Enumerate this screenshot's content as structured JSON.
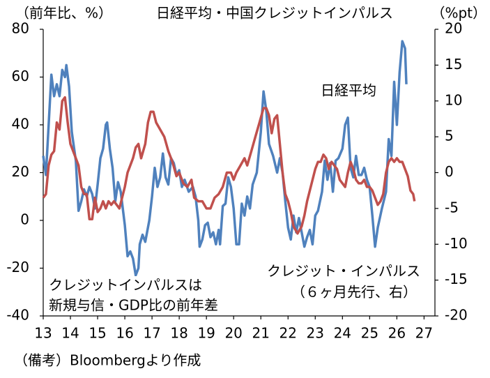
{
  "chart_data": {
    "type": "line",
    "title": "日経平均・中国クレジットインパルス",
    "ylabel": "（前年比、%）",
    "y2label": "（%pt）",
    "xlim": [
      13,
      27.4
    ],
    "xticks": [
      13,
      14,
      15,
      16,
      17,
      18,
      19,
      20,
      21,
      22,
      23,
      24,
      25,
      26,
      27
    ],
    "ylim": [
      -40,
      80
    ],
    "yticks": [
      -40,
      -20,
      0,
      20,
      40,
      60,
      80
    ],
    "y2lim": [
      -20,
      20
    ],
    "y2ticks": [
      -20,
      -15,
      -10,
      -5,
      0,
      5,
      10,
      15,
      20
    ],
    "series": [
      {
        "name": "日経平均",
        "color": "#4f81bd",
        "axis": "y",
        "x": [
          13.0,
          13.1,
          13.2,
          13.3,
          13.4,
          13.5,
          13.6,
          13.7,
          13.8,
          13.85,
          13.95,
          14.05,
          14.2,
          14.3,
          14.4,
          14.5,
          14.6,
          14.7,
          14.8,
          14.9,
          15.0,
          15.1,
          15.2,
          15.3,
          15.35,
          15.45,
          15.55,
          15.65,
          15.75,
          15.85,
          16.0,
          16.1,
          16.2,
          16.3,
          16.4,
          16.5,
          16.55,
          16.65,
          16.75,
          16.9,
          17.0,
          17.1,
          17.2,
          17.3,
          17.4,
          17.5,
          17.6,
          17.7,
          17.8,
          17.9,
          18.0,
          18.1,
          18.2,
          18.35,
          18.5,
          18.6,
          18.7,
          18.75,
          18.85,
          18.95,
          19.05,
          19.15,
          19.25,
          19.35,
          19.45,
          19.5,
          19.6,
          19.7,
          19.8,
          19.9,
          20.0,
          20.1,
          20.2,
          20.3,
          20.4,
          20.5,
          20.6,
          20.7,
          20.85,
          21.0,
          21.1,
          21.2,
          21.3,
          21.45,
          21.6,
          21.7,
          21.8,
          21.9,
          22.0,
          22.1,
          22.2,
          22.3,
          22.4,
          22.5,
          22.6,
          22.7,
          22.8,
          22.9,
          23.0,
          23.1,
          23.25,
          23.35,
          23.45,
          23.55,
          23.65,
          23.75,
          23.85,
          24.0,
          24.1,
          24.2,
          24.3,
          24.4,
          24.5,
          24.6,
          24.7,
          24.8,
          24.9,
          25.0,
          25.1,
          25.2,
          25.3,
          25.45,
          25.6,
          25.7,
          25.8,
          25.9,
          26.0,
          26.1,
          26.2,
          26.3,
          26.35
        ],
        "values": [
          27,
          19,
          40,
          61,
          52,
          57,
          52,
          63,
          60,
          65,
          56,
          37,
          25,
          4,
          8,
          13,
          10,
          14,
          11,
          5,
          15,
          26,
          30,
          40,
          41,
          30,
          22,
          8,
          16,
          12,
          -2,
          -15,
          -13,
          -16,
          -23,
          -20,
          -10,
          -6,
          -9,
          0,
          10,
          22,
          14,
          18,
          28,
          18,
          15,
          26,
          24,
          19,
          21,
          14,
          17,
          12,
          14,
          10,
          0,
          -11,
          -8,
          -2,
          -1,
          -7,
          -5,
          -10,
          -4,
          -10,
          6,
          7,
          18,
          14,
          5,
          -10,
          -10,
          7,
          2,
          10,
          5,
          15,
          20,
          37,
          54,
          46,
          32,
          27,
          20,
          26,
          20,
          8,
          -3,
          -8,
          2,
          -5,
          1,
          -5,
          -11,
          -7,
          -4,
          -10,
          2,
          4,
          12,
          25,
          17,
          24,
          12,
          25,
          26,
          30,
          40,
          43,
          22,
          18,
          27,
          19,
          19,
          22,
          17,
          14,
          2,
          -11,
          -3,
          5,
          12,
          34,
          27,
          58,
          40,
          62,
          75,
          72,
          57
        ]
      },
      {
        "name": "クレジット・インパルス",
        "color": "#c0504d",
        "axis": "y2",
        "x": [
          13.0,
          13.1,
          13.2,
          13.3,
          13.4,
          13.5,
          13.6,
          13.7,
          13.8,
          13.9,
          14.0,
          14.2,
          14.3,
          14.4,
          14.5,
          14.6,
          14.7,
          14.8,
          14.9,
          15.0,
          15.1,
          15.2,
          15.3,
          15.4,
          15.5,
          15.6,
          15.7,
          15.8,
          16.0,
          16.1,
          16.2,
          16.3,
          16.4,
          16.5,
          16.6,
          16.75,
          16.85,
          16.95,
          17.05,
          17.15,
          17.3,
          17.45,
          17.6,
          17.75,
          17.9,
          18.0,
          18.15,
          18.3,
          18.45,
          18.55,
          18.7,
          18.85,
          19.0,
          19.15,
          19.3,
          19.45,
          19.6,
          19.75,
          19.9,
          20.0,
          20.1,
          20.25,
          20.4,
          20.5,
          20.65,
          20.8,
          20.95,
          21.1,
          21.2,
          21.3,
          21.4,
          21.5,
          21.6,
          21.7,
          21.8,
          21.9,
          22.0,
          22.1,
          22.2,
          22.35,
          22.5,
          22.6,
          22.7,
          22.8,
          22.9,
          23.0,
          23.1,
          23.2,
          23.3,
          23.4,
          23.5,
          23.6,
          23.7,
          23.8,
          23.9,
          24.0,
          24.1,
          24.2,
          24.3,
          24.4,
          24.5,
          24.6,
          24.7,
          24.8,
          24.9,
          25.0,
          25.1,
          25.2,
          25.3,
          25.4,
          25.5,
          25.6,
          25.7,
          25.8,
          25.9,
          26.0,
          26.1,
          26.2,
          26.3,
          26.4,
          26.5,
          26.6,
          26.65
        ],
        "values": [
          -3.5,
          -3,
          1,
          2.5,
          3,
          7,
          6,
          10,
          10.5,
          7,
          4,
          2,
          1,
          -2,
          -3,
          -3,
          -6.5,
          -6.5,
          -3.5,
          -5.5,
          -5,
          -4,
          -5,
          -4,
          -4.5,
          -4,
          -4.5,
          -5,
          -2,
          0,
          1,
          2,
          3.5,
          4,
          2,
          4,
          7,
          8.5,
          8.5,
          7,
          6,
          5,
          3,
          1.5,
          -0.5,
          0,
          -1.5,
          -2,
          -1,
          -3.5,
          -4,
          -4,
          -5,
          -5,
          -3.5,
          -3,
          -2,
          0,
          0,
          -1,
          0,
          1,
          2,
          1,
          3,
          5,
          7,
          9,
          9,
          8,
          5.5,
          7.5,
          8,
          4,
          0,
          -3,
          -4,
          -5.5,
          -7.5,
          -8.5,
          -7.5,
          -6,
          -4,
          -2.5,
          -1,
          0.5,
          1.5,
          1.5,
          2.5,
          2,
          0.5,
          1.5,
          1,
          0.5,
          -1,
          -1.5,
          -2,
          0,
          1.5,
          0.5,
          -1,
          -1.5,
          -1.5,
          -1,
          -2,
          -2,
          -2.5,
          -3.5,
          -4.5,
          -4,
          -3,
          0,
          1.5,
          2,
          1.5,
          2,
          1.5,
          1.5,
          0.5,
          -0.5,
          -2.5,
          -3,
          -4
        ]
      }
    ],
    "annotations": [
      "（６ヶ月先行、右）",
      "クレジットインパルスは",
      "新規与信・GDP比の前年差"
    ],
    "note": "（備考）Bloombergより作成"
  }
}
